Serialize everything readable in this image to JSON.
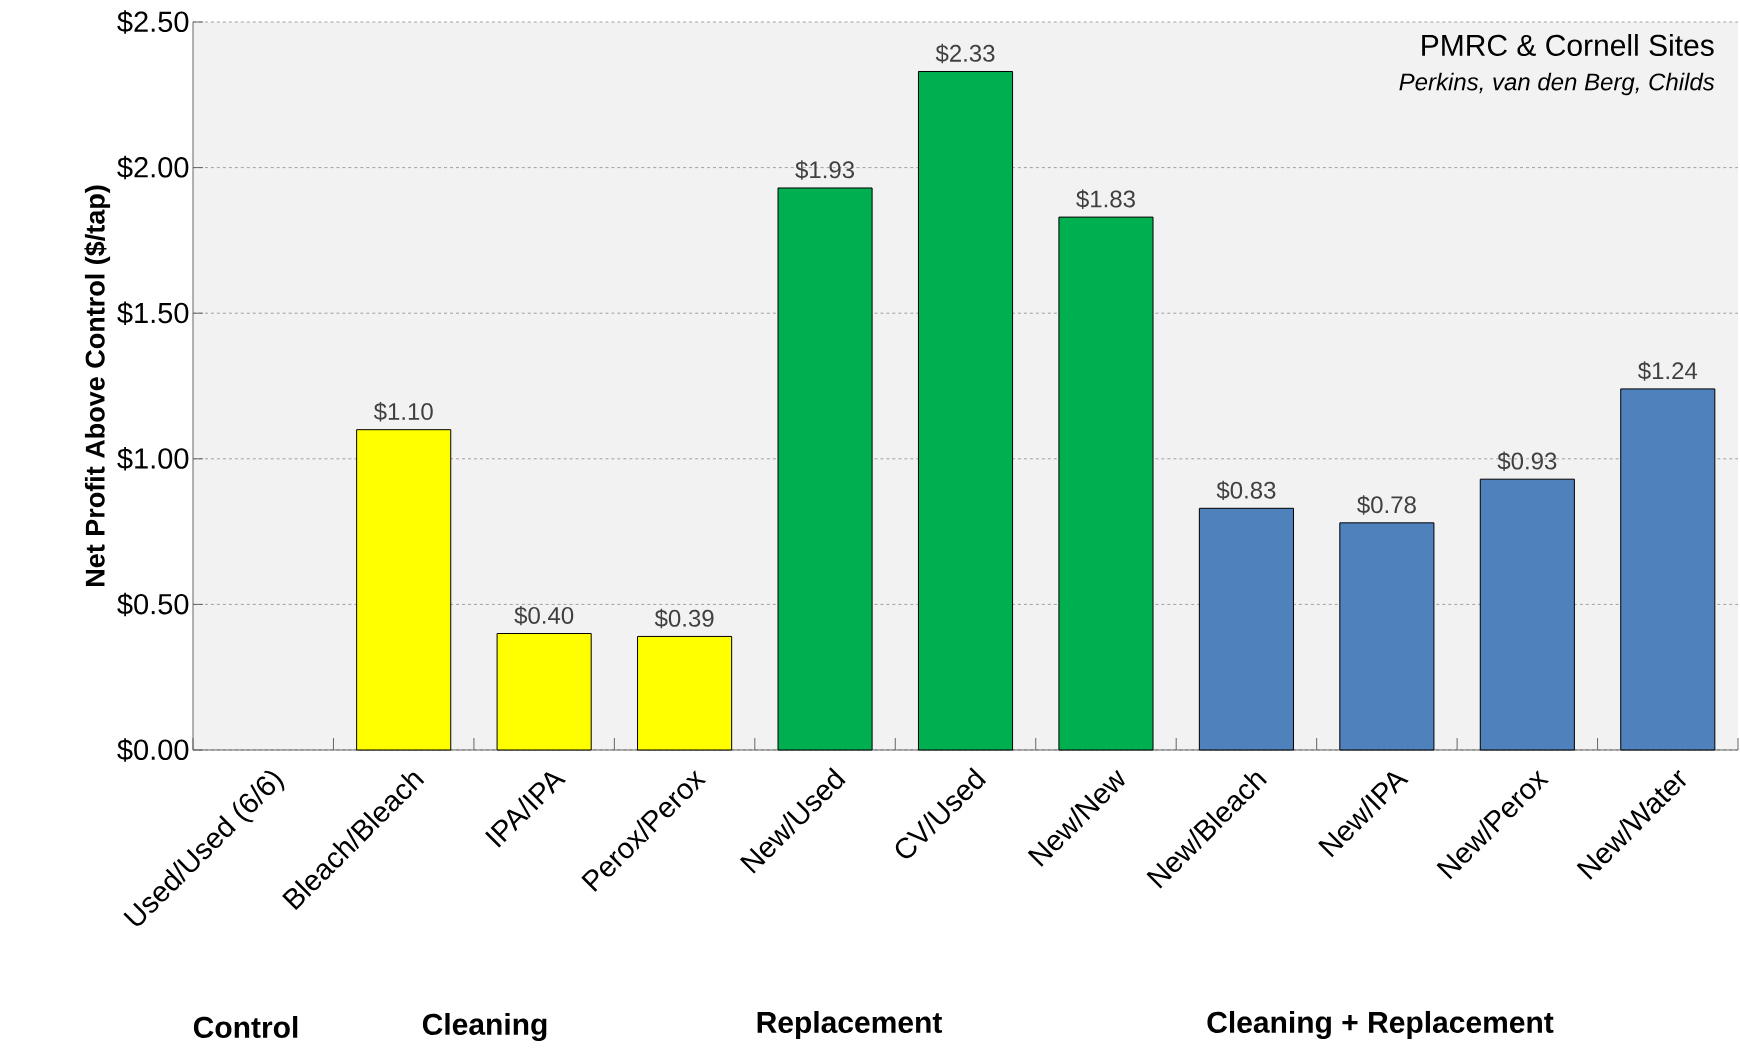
{
  "chart_data": {
    "type": "bar",
    "ylabel": "Net Profit Above Control ($/tap)",
    "categories": [
      "Used/Used (6/6)",
      "Bleach/Bleach",
      "IPA/IPA",
      "Perox/Perox",
      "New/Used",
      "CV/Used",
      "New/New",
      "New/Bleach",
      "New/IPA",
      "New/Perox",
      "New/Water"
    ],
    "values": [
      null,
      1.1,
      0.4,
      0.39,
      1.93,
      2.33,
      1.83,
      0.83,
      0.78,
      0.93,
      1.24
    ],
    "colors": [
      null,
      "#ffff00",
      "#ffff00",
      "#ffff00",
      "#00b050",
      "#00b050",
      "#00b050",
      "#4f81bd",
      "#4f81bd",
      "#4f81bd",
      "#4f81bd"
    ],
    "value_labels": [
      null,
      "$1.10",
      "$0.40",
      "$0.39",
      "$1.93",
      "$2.33",
      "$1.83",
      "$0.83",
      "$0.78",
      "$0.93",
      "$1.24"
    ],
    "ylim": [
      0,
      2.5
    ],
    "yticks": [
      {
        "value": 0,
        "label": "$0.00"
      },
      {
        "value": 0.5,
        "label": "$0.50"
      },
      {
        "value": 1,
        "label": "$1.00"
      },
      {
        "value": 1.5,
        "label": "$1.50"
      },
      {
        "value": 2,
        "label": "$2.00"
      },
      {
        "value": 2.5,
        "label": "$2.50"
      }
    ],
    "grid": "y",
    "annotations": [
      "PMRC & Cornell Sites",
      "Perkins, van den Berg, Childs",
      "Control",
      "Cleaning",
      "Replacement",
      "Cleaning + Replacement"
    ]
  }
}
